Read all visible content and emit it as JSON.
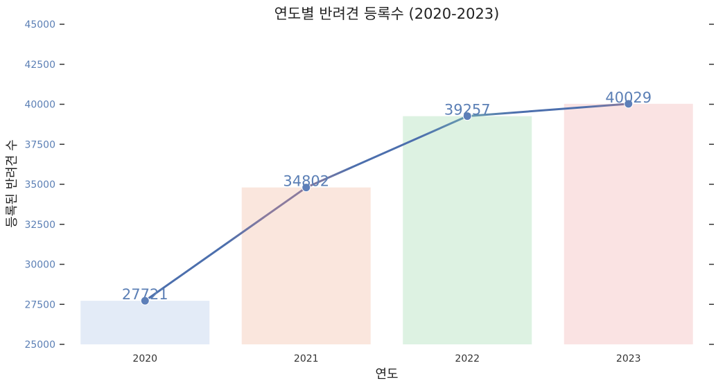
{
  "chart_data": {
    "type": "bar",
    "title": "연도별 반려견 등록수 (2020-2023)",
    "xlabel": "연도",
    "ylabel": "등록된 반려견 수",
    "categories": [
      "2020",
      "2021",
      "2022",
      "2023"
    ],
    "values": [
      27721,
      34802,
      39257,
      40029
    ],
    "data_labels": [
      "27721",
      "34802",
      "39257",
      "40029"
    ],
    "ylim": [
      25000,
      45000
    ],
    "yticks": [
      25000,
      27500,
      30000,
      32500,
      35000,
      37500,
      40000,
      42500,
      45000
    ],
    "ytick_labels": [
      "25000",
      "27500",
      "30000",
      "32500",
      "35000",
      "37500",
      "40000",
      "42500",
      "45000"
    ],
    "overlay_line": true,
    "grid": false,
    "colors": {
      "bars": [
        "#e3ebf7",
        "#fae6dd",
        "#ddf2e2",
        "#fae3e3"
      ],
      "line": "#4c6fad",
      "line_mid": "#8b7b9e",
      "line_mid2": "#6a9db0",
      "marker": "#5d7fb9",
      "label": "#5b7fb5",
      "tick_y": "#5b7fb5"
    }
  }
}
